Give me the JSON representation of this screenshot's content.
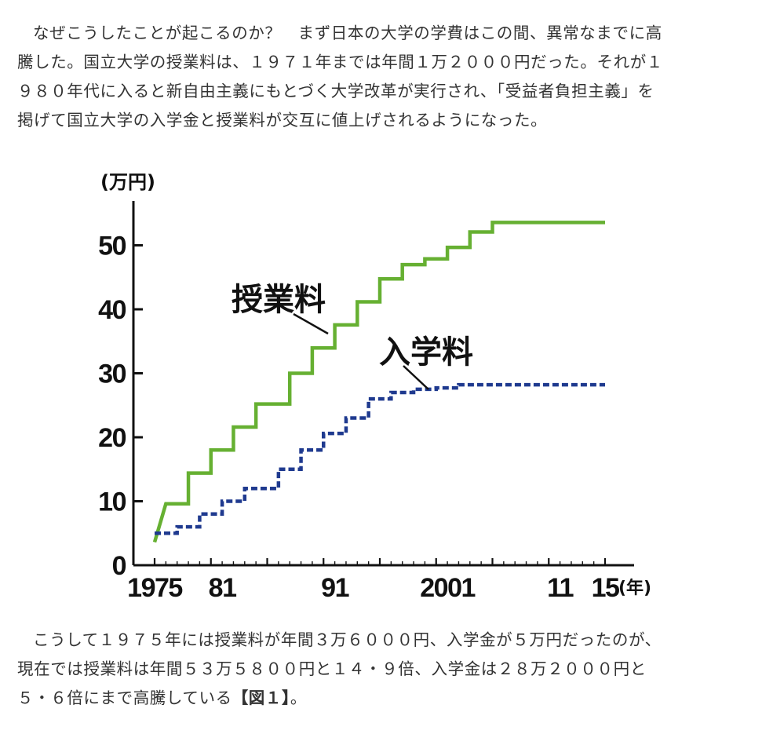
{
  "article": {
    "para1_lines": [
      "なぜこうしたことが起こるのか？　まず日本の大学の学費はこの間、異常なまでに高",
      "騰した。国立大学の授業料は、１９７１年までは年間１万２０００円だった。それが１",
      "９８０年代に入ると新自由主義にもとづく大学改革が実行され、「受益者負担主義」を",
      "掲げて国立大学の入学金と授業料が交互に値上げされるようになった。"
    ],
    "para2_lines": [
      "こうして１９７５年には授業料が年間３万６０００円、入学金が５万円だったのが、",
      "現在では授業料は年間５３万５８００円と１４・９倍、入学金は２８万２０００円と",
      "５・６倍にまで高騰している"
    ],
    "figure_ref": "【図１】",
    "para2_end": "。"
  },
  "chart_data": {
    "type": "line",
    "y_unit_label": "(万円)",
    "x_unit_label": "(年)",
    "x_range": [
      1975,
      2015
    ],
    "ylim": [
      0,
      55
    ],
    "y_ticks": [
      0,
      10,
      20,
      30,
      40,
      50
    ],
    "y_tick_labels": [
      "0",
      "10",
      "20",
      "30",
      "40",
      "50"
    ],
    "x_ticks": [
      1975,
      1981,
      1991,
      2001,
      2011,
      2015
    ],
    "x_tick_labels": [
      "1975",
      "81",
      "91",
      "2001",
      "11",
      "15"
    ],
    "grid": false,
    "series": [
      {
        "name": "授業料",
        "style": "solid",
        "color": "#66b032",
        "steps": [
          [
            1975,
            3.6
          ],
          [
            1976,
            9.6
          ],
          [
            1978,
            14.4
          ],
          [
            1980,
            18.0
          ],
          [
            1982,
            21.6
          ],
          [
            1984,
            25.2
          ],
          [
            1987,
            30.0
          ],
          [
            1989,
            33.96
          ],
          [
            1991,
            37.56
          ],
          [
            1993,
            41.16
          ],
          [
            1995,
            44.76
          ],
          [
            1997,
            46.98
          ],
          [
            1999,
            47.88
          ],
          [
            2001,
            49.68
          ],
          [
            2003,
            52.08
          ],
          [
            2005,
            53.58
          ]
        ],
        "end_year": 2015
      },
      {
        "name": "入学料",
        "style": "dashed",
        "color": "#1f3a8f",
        "steps": [
          [
            1975,
            5.0
          ],
          [
            1977,
            6.0
          ],
          [
            1979,
            8.0
          ],
          [
            1981,
            10.0
          ],
          [
            1983,
            12.0
          ],
          [
            1986,
            15.0
          ],
          [
            1988,
            18.0
          ],
          [
            1990,
            20.6
          ],
          [
            1992,
            23.0
          ],
          [
            1994,
            26.0
          ],
          [
            1996,
            27.0
          ],
          [
            1998,
            27.5
          ],
          [
            2000,
            27.72
          ],
          [
            2002,
            28.2
          ]
        ],
        "end_year": 2015
      }
    ]
  }
}
